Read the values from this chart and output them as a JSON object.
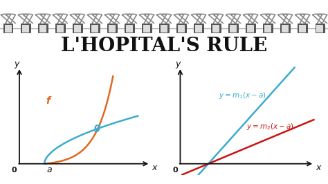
{
  "title": "L'HOPITAL'S RULE",
  "title_fontsize": 20,
  "bg_color": "#ffffff",
  "ring_bar_color": "#dddddd",
  "left_curves": {
    "f_color": "#e06820",
    "g_color": "#3aacce",
    "a_label": "a",
    "f_label": "f",
    "g_label": "g"
  },
  "right_lines": {
    "m1_color": "#3aacce",
    "m2_color": "#cc1111",
    "m1_label": "y = m_1(x - a)",
    "m2_label": "y = m_2(x - a)"
  },
  "axis_color": "#111111",
  "n_rings": 19,
  "ring_color_outer": "#888888",
  "ring_color_inner": "#cccccc",
  "ring_bar_bg": "#bbbbbb"
}
